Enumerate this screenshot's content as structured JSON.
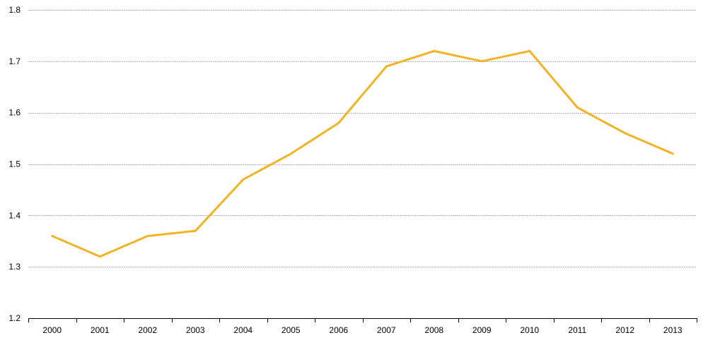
{
  "chart_data": {
    "type": "line",
    "title": "",
    "xlabel": "",
    "ylabel": "",
    "categories": [
      "2000",
      "2001",
      "2002",
      "2003",
      "2004",
      "2005",
      "2006",
      "2007",
      "2008",
      "2009",
      "2010",
      "2011",
      "2012",
      "2013"
    ],
    "series": [
      {
        "values": [
          1.36,
          1.32,
          1.36,
          1.37,
          1.47,
          1.52,
          1.58,
          1.69,
          1.72,
          1.7,
          1.72,
          1.61,
          1.56,
          1.52
        ]
      }
    ],
    "ylim": [
      1.2,
      1.8
    ],
    "yticks": [
      "1.2",
      "1.3",
      "1.4",
      "1.5",
      "1.6",
      "1.7",
      "1.8"
    ],
    "grid": true,
    "legend": "none",
    "colors": {
      "line": "#F0B323",
      "grid": "#B3B3B3",
      "axis": "#000000"
    }
  }
}
